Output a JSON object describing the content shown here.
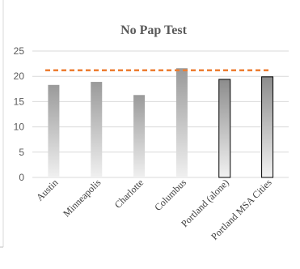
{
  "chart_data": {
    "type": "bar",
    "title": "No Pap Test",
    "categories": [
      "Austin",
      "Minneapolis",
      "Charlotte",
      "Columbus",
      "Portland (alone)",
      "Portland MSA Cities"
    ],
    "values": [
      18.3,
      18.9,
      16.3,
      21.6,
      19.4,
      19.9
    ],
    "ylim": [
      0,
      25
    ],
    "yticks": [
      0,
      5,
      10,
      15,
      20,
      25
    ],
    "reference_line": {
      "value": 21.2,
      "style": "dashed",
      "color": "#ED7D31"
    },
    "grid": true,
    "legend": "none",
    "colors": {
      "bar_gray_top": "#9a9a9a",
      "bar_gray_bottom": "#f0f0f0",
      "bar_outlined_top": "#8c8c8c",
      "bar_outlined_bottom": "#f2f2f2",
      "bar_outline": "#000000",
      "grid": "#d9d9d9"
    },
    "outlined_categories": [
      "Portland (alone)",
      "Portland MSA Cities"
    ]
  }
}
